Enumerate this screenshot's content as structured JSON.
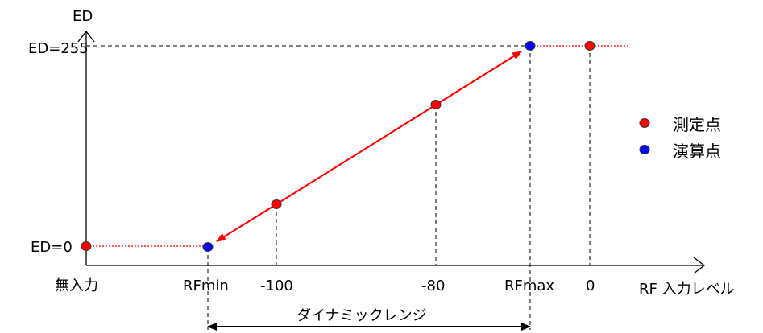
{
  "chart_data": {
    "type": "line",
    "title": "",
    "xlabel": "RF 入力レベル",
    "ylabel": "ED",
    "y_ticks": [
      {
        "label": "ED=0",
        "value": 0
      },
      {
        "label": "ED=255",
        "value": 255
      }
    ],
    "x_ticks": [
      {
        "label": "無入力",
        "x": "none"
      },
      {
        "label": "RFmin",
        "x": "RFmin"
      },
      {
        "label": "-100",
        "x": -100
      },
      {
        "label": "-80",
        "x": -80
      },
      {
        "label": "RFmax",
        "x": "RFmax"
      },
      {
        "label": "0",
        "x": 0
      }
    ],
    "series": [
      {
        "name": "測定点",
        "color": "#ff0000",
        "points": [
          {
            "x": "無入力",
            "y": 0
          },
          {
            "x": -100,
            "y": 66
          },
          {
            "x": -80,
            "y": 195
          },
          {
            "x": 0,
            "y": 255
          }
        ]
      },
      {
        "name": "演算点",
        "color": "#0000ff",
        "points": [
          {
            "x": "RFmin",
            "y": 0
          },
          {
            "x": "RFmax",
            "y": 255
          }
        ]
      }
    ],
    "legend": {
      "position": "right",
      "entries": [
        "測定点",
        "演算点"
      ]
    },
    "range_annotation": {
      "label": "ダイナミックレンジ",
      "from": "RFmin",
      "to": "RFmax"
    },
    "grid": false
  }
}
